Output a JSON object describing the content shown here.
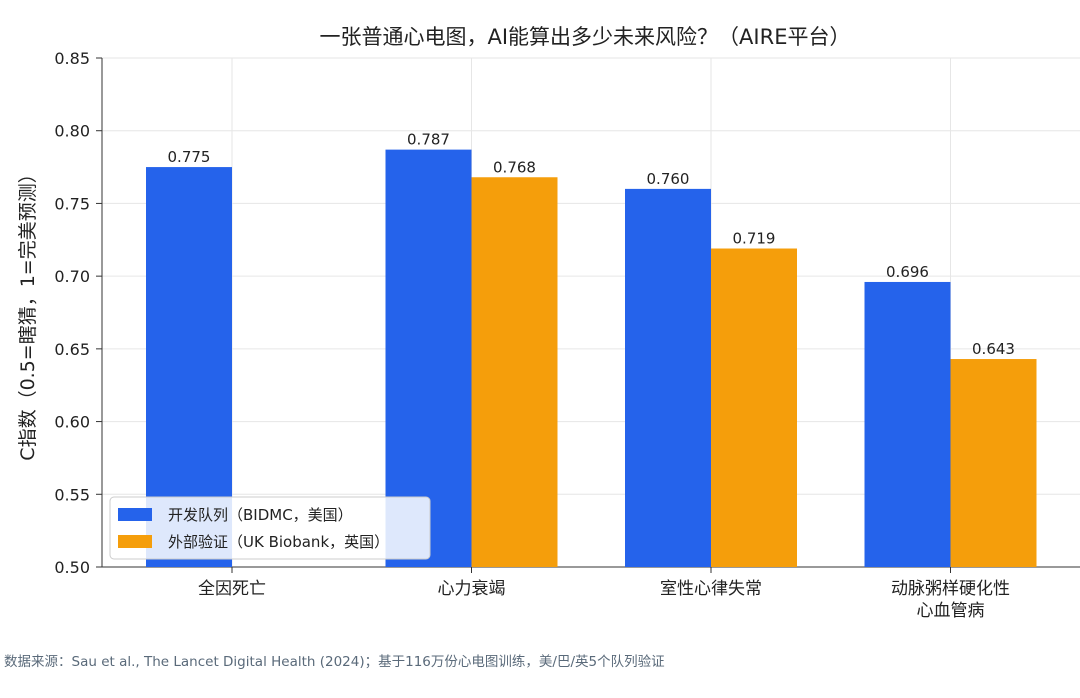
{
  "chart_data": {
    "type": "bar",
    "title": "一张普通心电图，AI能算出多少未来风险？（AIRE平台）",
    "ylabel": "C指数（0.5=瞎猜，1=完美预测）",
    "xlabel": "",
    "ylim": [
      0.5,
      0.85
    ],
    "yticks": [
      "0.50",
      "0.55",
      "0.60",
      "0.65",
      "0.70",
      "0.75",
      "0.80",
      "0.85"
    ],
    "grid": true,
    "legend_position": "bottom-left",
    "categories": [
      [
        "全因死亡"
      ],
      [
        "心力衰竭"
      ],
      [
        "室性心律失常"
      ],
      [
        "动脉粥样硬化性",
        "心血管病"
      ]
    ],
    "series": [
      {
        "name": "开发队列（BIDMC，美国）",
        "color": "#2563eb",
        "values": [
          0.775,
          0.787,
          0.76,
          0.696
        ],
        "labels": [
          "0.775",
          "0.787",
          "0.760",
          "0.696"
        ]
      },
      {
        "name": "外部验证（UK Biobank，英国）",
        "color": "#f59e0b",
        "values": [
          null,
          0.768,
          0.719,
          0.643
        ],
        "labels": [
          "",
          "0.768",
          "0.719",
          "0.643"
        ]
      }
    ]
  },
  "caption": "数据来源：Sau et al., The Lancet Digital Health (2024)；基于116万份心电图训练，美/巴/英5个队列验证"
}
